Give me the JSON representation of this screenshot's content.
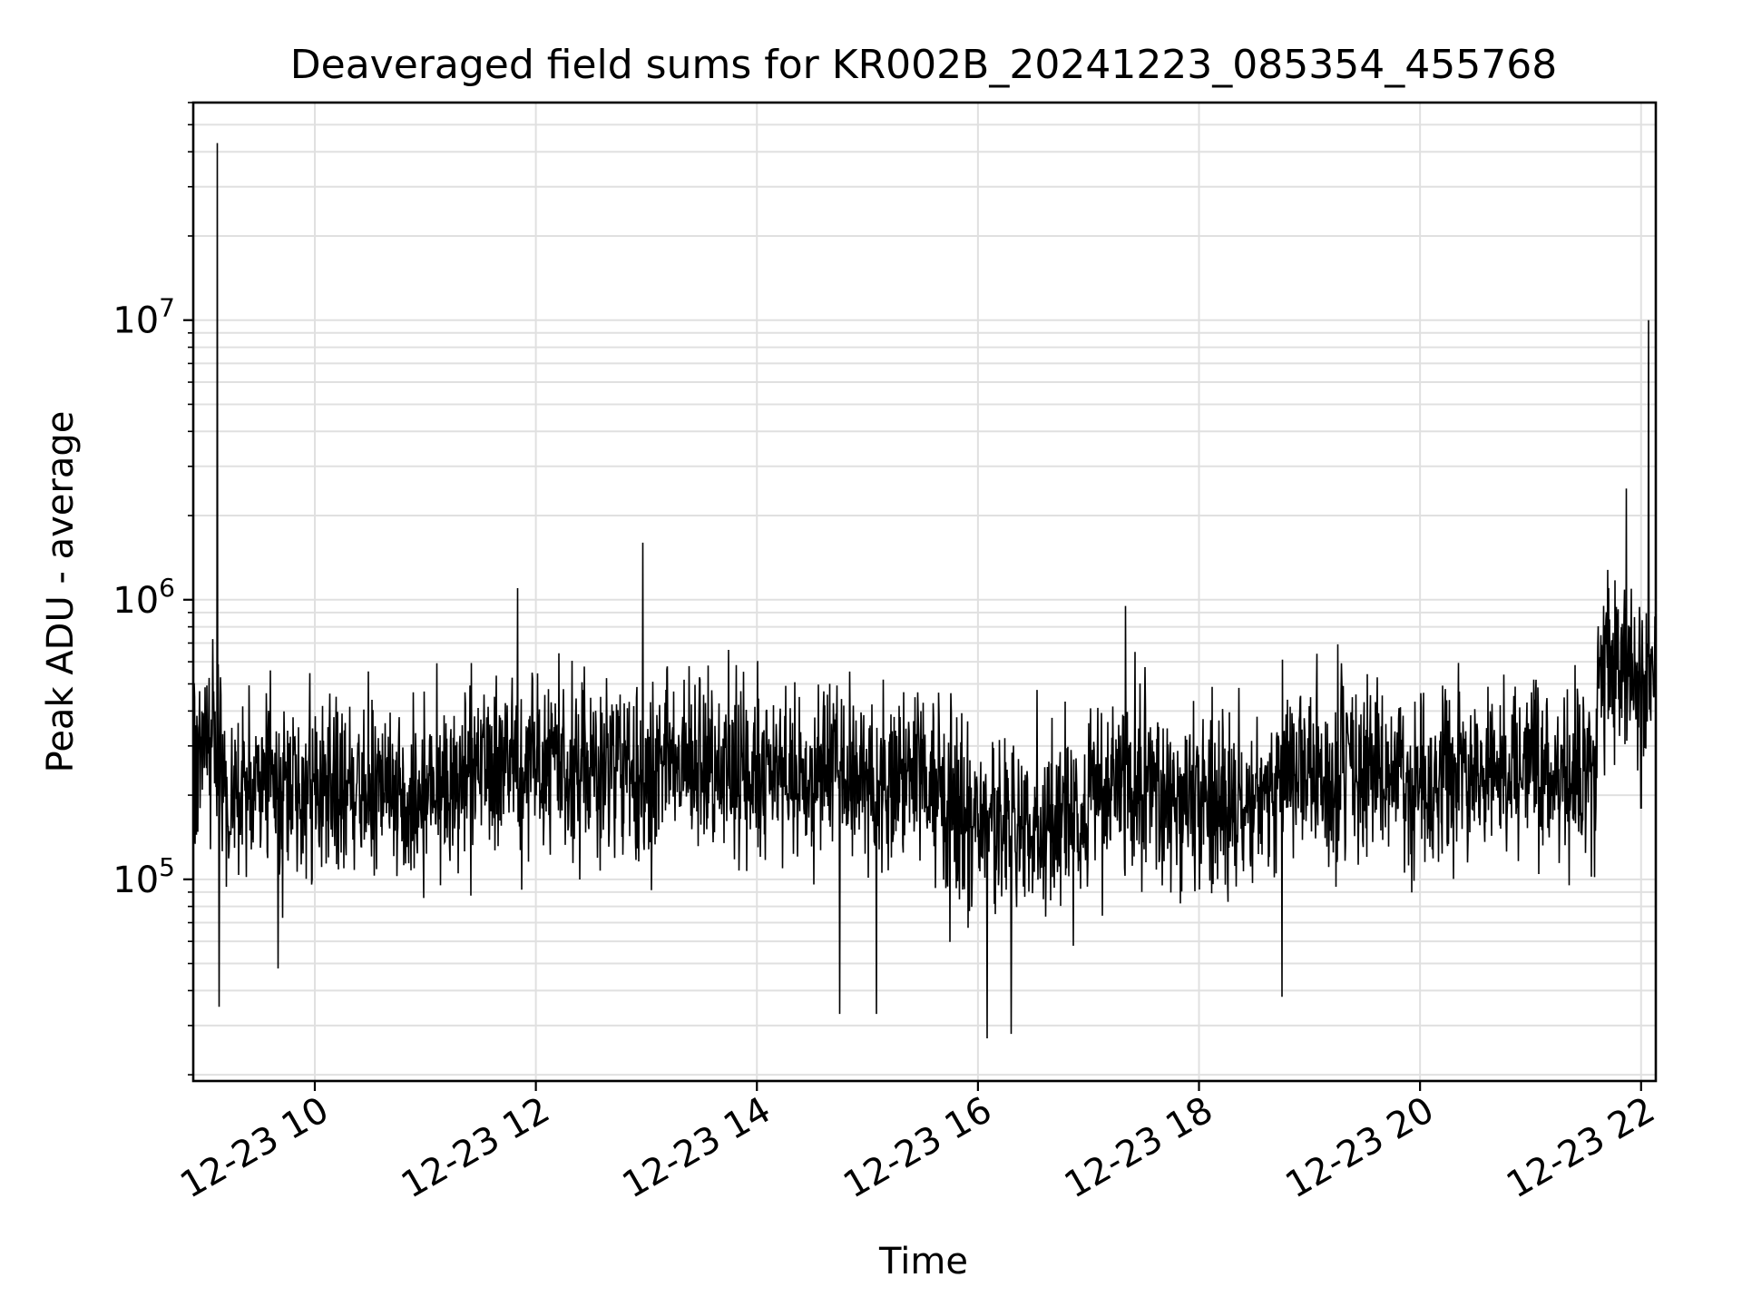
{
  "chart_data": {
    "type": "line",
    "title": "Deaveraged field sums for KR002B_20241223_085354_455768",
    "xlabel": "Time",
    "ylabel": "Peak ADU - average",
    "y_scale": "log",
    "grid": true,
    "grid_minor": true,
    "legend": "none",
    "line_color": "#000000",
    "grid_color": "#e0e0e0",
    "x_tick_labels": [
      "12-23 10",
      "12-23 12",
      "12-23 14",
      "12-23 16",
      "12-23 18",
      "12-23 20",
      "12-23 22"
    ],
    "x_ticks": [
      "2024-12-23 10:00",
      "2024-12-23 12:00",
      "2024-12-23 14:00",
      "2024-12-23 16:00",
      "2024-12-23 18:00",
      "2024-12-23 20:00",
      "2024-12-23 22:00"
    ],
    "xlim": [
      "2024-12-23 08:54",
      "2024-12-23 22:08"
    ],
    "y_ticks": [
      {
        "base": "10",
        "exp": "5",
        "value": 100000
      },
      {
        "base": "10",
        "exp": "6",
        "value": 1000000
      },
      {
        "base": "10",
        "exp": "7",
        "value": 10000000
      }
    ],
    "ylim": [
      19000,
      60000000
    ],
    "series": [
      {
        "values": [
          [
            "2024-12-23 08:54",
            300000
          ],
          [
            "2024-12-23 09:00",
            250000
          ],
          [
            "2024-12-23 09:07",
            43000000
          ],
          [
            "2024-12-23 09:08",
            35000
          ],
          [
            "2024-12-23 09:20",
            220000
          ],
          [
            "2024-12-23 09:40",
            48000
          ],
          [
            "2024-12-23 10:00",
            200000
          ],
          [
            "2024-12-23 10:30",
            240000
          ],
          [
            "2024-12-23 11:00",
            210000
          ],
          [
            "2024-12-23 11:30",
            250000
          ],
          [
            "2024-12-23 11:50",
            1100000
          ],
          [
            "2024-12-23 12:00",
            240000
          ],
          [
            "2024-12-23 12:30",
            250000
          ],
          [
            "2024-12-23 12:58",
            1600000
          ],
          [
            "2024-12-23 13:30",
            240000
          ],
          [
            "2024-12-23 14:00",
            230000
          ],
          [
            "2024-12-23 14:45",
            33000
          ],
          [
            "2024-12-23 15:05",
            33000
          ],
          [
            "2024-12-23 15:30",
            220000
          ],
          [
            "2024-12-23 16:05",
            27000
          ],
          [
            "2024-12-23 16:18",
            28000
          ],
          [
            "2024-12-23 16:30",
            160000
          ],
          [
            "2024-12-23 17:00",
            200000
          ],
          [
            "2024-12-23 17:20",
            950000
          ],
          [
            "2024-12-23 18:00",
            200000
          ],
          [
            "2024-12-23 18:45",
            38000
          ],
          [
            "2024-12-23 19:00",
            230000
          ],
          [
            "2024-12-23 20:00",
            250000
          ],
          [
            "2024-12-23 21:00",
            240000
          ],
          [
            "2024-12-23 21:36",
            230000
          ],
          [
            "2024-12-23 21:48",
            550000
          ],
          [
            "2024-12-23 21:52",
            2500000
          ],
          [
            "2024-12-23 22:00",
            180000
          ],
          [
            "2024-12-23 22:04",
            10000000
          ],
          [
            "2024-12-23 22:08",
            600000
          ]
        ]
      }
    ]
  }
}
